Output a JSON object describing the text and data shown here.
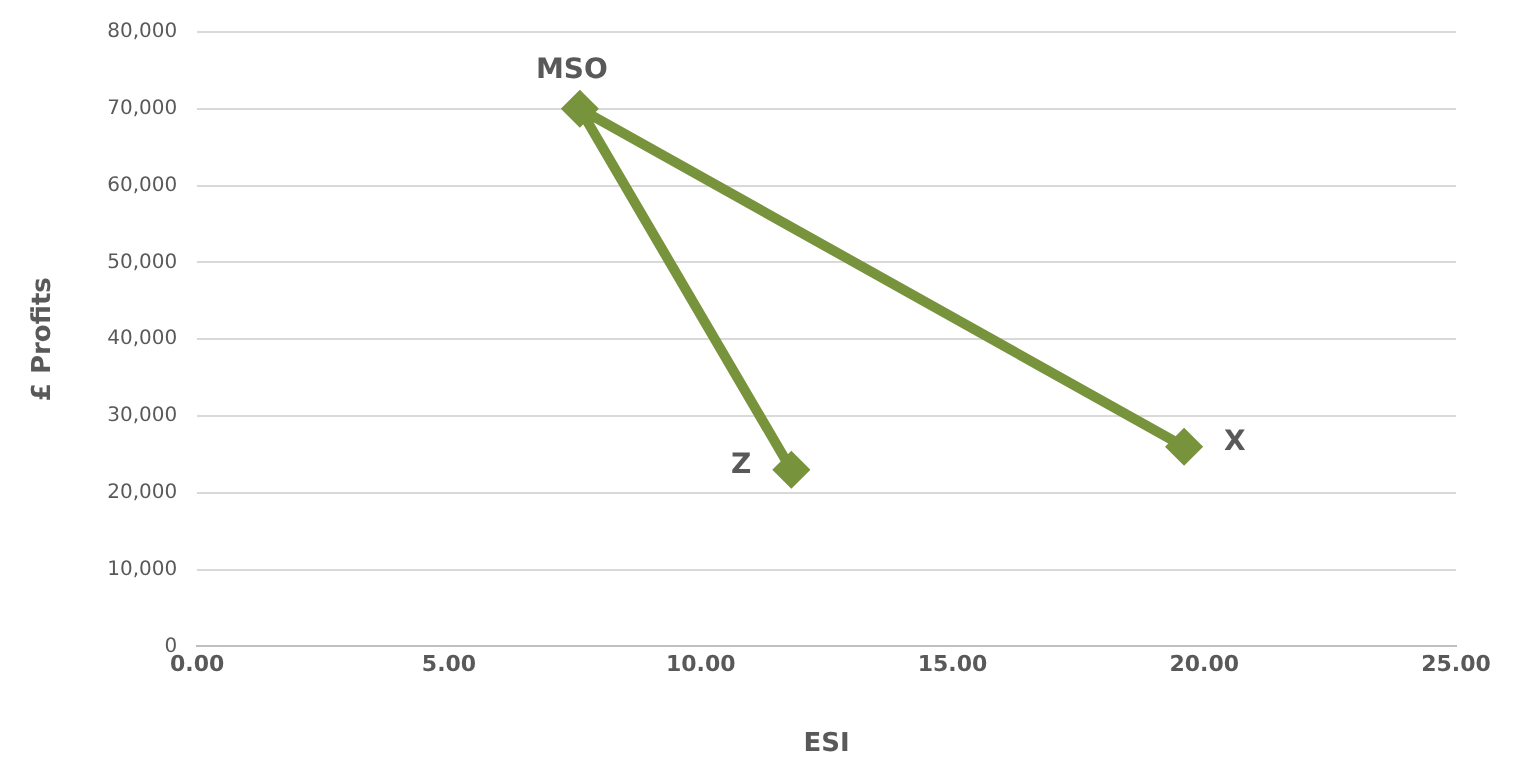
{
  "chart_data": {
    "type": "line",
    "xlabel": "ESI",
    "ylabel": "£ Profits",
    "x": [
      11.8,
      7.6,
      19.6
    ],
    "series": [
      {
        "color": "#77933c",
        "values": [
          23000,
          70000,
          26000
        ]
      }
    ],
    "marker": "diamond",
    "grid": "y",
    "legend": false,
    "xlim": [
      0,
      25
    ],
    "xticks": [
      {
        "value": 0,
        "label": "0.00"
      },
      {
        "value": 5,
        "label": "5.00"
      },
      {
        "value": 10,
        "label": "10.00"
      },
      {
        "value": 15,
        "label": "15.00"
      },
      {
        "value": 20,
        "label": "20.00"
      },
      {
        "value": 25,
        "label": "25.00"
      }
    ],
    "ylim": [
      0,
      80000
    ],
    "yticks": [
      0,
      {
        "value": 10000,
        "label": "10,000"
      },
      {
        "value": 20000,
        "label": "20,000"
      },
      {
        "value": 30000,
        "label": "30,000"
      },
      {
        "value": 40000,
        "label": "40,000"
      },
      {
        "value": 50000,
        "label": "50,000"
      },
      {
        "value": 60000,
        "label": "60,000"
      },
      {
        "value": 70000,
        "label": "70,000"
      },
      {
        "value": 80000,
        "label": "80,000"
      }
    ],
    "annotations": [
      {
        "text": "Z",
        "x": 11.8,
        "y": 23000
      },
      {
        "text": "MSO",
        "x": 7.6,
        "y": 70000
      },
      {
        "text": "X",
        "x": 19.6,
        "y": 26000
      }
    ]
  }
}
